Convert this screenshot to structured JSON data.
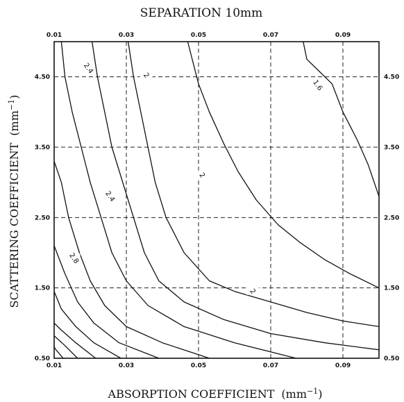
{
  "chart_data": {
    "type": "line",
    "title": "SEPARATION  10mm",
    "xlabel": "ABSORPTION  COEFFICIENT",
    "xlabel_unit": "(mm",
    "xlabel_unit_exp": "−1",
    "xlabel_unit_close": ")",
    "ylabel": "SCATTERING  COEFFICIENT",
    "ylabel_unit": "(mm",
    "ylabel_unit_exp": "−1",
    "ylabel_unit_close": ")",
    "xlim": [
      0.01,
      0.1
    ],
    "ylim": [
      0.5,
      5.0
    ],
    "x_ticks": [
      "0.01",
      "0.03",
      "0.05",
      "0.07",
      "0.09"
    ],
    "x_tick_values": [
      0.01,
      0.03,
      0.05,
      0.07,
      0.09
    ],
    "y_ticks": [
      "0.50",
      "1.50",
      "2.50",
      "3.50",
      "4.50"
    ],
    "y_tick_values": [
      0.5,
      1.5,
      2.5,
      3.5,
      4.5
    ],
    "grid": true,
    "grid_style": "dashed",
    "series": [
      {
        "values": [
          [
            0.0125,
            0.5
          ],
          [
            0.0105,
            0.62
          ],
          [
            0.01,
            0.66
          ]
        ]
      },
      {
        "values": [
          [
            0.0165,
            0.5
          ],
          [
            0.013,
            0.68
          ],
          [
            0.01,
            0.82
          ]
        ]
      },
      {
        "values": [
          [
            0.0215,
            0.5
          ],
          [
            0.016,
            0.72
          ],
          [
            0.012,
            0.9
          ],
          [
            0.01,
            1.0
          ]
        ]
      },
      {
        "values": [
          [
            0.0285,
            0.5
          ],
          [
            0.021,
            0.72
          ],
          [
            0.016,
            0.95
          ],
          [
            0.012,
            1.2
          ],
          [
            0.01,
            1.45
          ]
        ]
      },
      {
        "values": [
          [
            0.039,
            0.5
          ],
          [
            0.028,
            0.72
          ],
          [
            0.021,
            1.0
          ],
          [
            0.0165,
            1.3
          ],
          [
            0.013,
            1.7
          ],
          [
            0.01,
            2.1
          ]
        ]
      },
      {
        "values": [
          [
            0.053,
            0.5
          ],
          [
            0.04,
            0.72
          ],
          [
            0.03,
            0.95
          ],
          [
            0.024,
            1.25
          ],
          [
            0.02,
            1.6
          ],
          [
            0.017,
            2.0
          ],
          [
            0.014,
            2.5
          ],
          [
            0.012,
            3.0
          ],
          [
            0.01,
            3.3
          ]
        ]
      },
      {
        "values": [
          [
            0.077,
            0.5
          ],
          [
            0.06,
            0.72
          ],
          [
            0.046,
            0.95
          ],
          [
            0.036,
            1.25
          ],
          [
            0.03,
            1.6
          ],
          [
            0.026,
            2.0
          ],
          [
            0.023,
            2.5
          ],
          [
            0.02,
            3.0
          ],
          [
            0.0175,
            3.5
          ],
          [
            0.015,
            4.0
          ],
          [
            0.013,
            4.5
          ],
          [
            0.012,
            5.0
          ]
        ]
      },
      {
        "values": [
          [
            0.1,
            0.62
          ],
          [
            0.085,
            0.72
          ],
          [
            0.07,
            0.85
          ],
          [
            0.057,
            1.05
          ],
          [
            0.046,
            1.3
          ],
          [
            0.039,
            1.6
          ],
          [
            0.035,
            2.0
          ],
          [
            0.032,
            2.5
          ],
          [
            0.029,
            3.0
          ],
          [
            0.026,
            3.5
          ],
          [
            0.024,
            4.0
          ],
          [
            0.022,
            4.5
          ],
          [
            0.0205,
            5.0
          ]
        ]
      },
      {
        "values": [
          [
            0.1,
            0.95
          ],
          [
            0.09,
            1.03
          ],
          [
            0.08,
            1.15
          ],
          [
            0.07,
            1.3
          ],
          [
            0.06,
            1.45
          ],
          [
            0.053,
            1.6
          ],
          [
            0.046,
            2.0
          ],
          [
            0.041,
            2.5
          ],
          [
            0.038,
            3.0
          ],
          [
            0.036,
            3.5
          ],
          [
            0.034,
            4.0
          ],
          [
            0.032,
            4.5
          ],
          [
            0.0305,
            5.0
          ]
        ]
      },
      {
        "values": [
          [
            0.1,
            1.5
          ],
          [
            0.092,
            1.7
          ],
          [
            0.085,
            1.9
          ],
          [
            0.078,
            2.15
          ],
          [
            0.072,
            2.4
          ],
          [
            0.066,
            2.75
          ],
          [
            0.061,
            3.15
          ],
          [
            0.057,
            3.55
          ],
          [
            0.053,
            4.0
          ],
          [
            0.05,
            4.4
          ],
          [
            0.047,
            5.0
          ]
        ]
      },
      {
        "values": [
          [
            0.1,
            2.8
          ],
          [
            0.097,
            3.25
          ],
          [
            0.094,
            3.6
          ],
          [
            0.09,
            4.0
          ],
          [
            0.087,
            4.4
          ],
          [
            0.083,
            4.6
          ],
          [
            0.08,
            4.75
          ],
          [
            0.079,
            5.0
          ]
        ]
      }
    ],
    "contour_labels": [
      {
        "text": "2.4",
        "x": 0.0195,
        "y": 4.62
      },
      {
        "text": "2",
        "x": 0.0355,
        "y": 4.52
      },
      {
        "text": "1.6",
        "x": 0.083,
        "y": 4.38
      },
      {
        "text": "2",
        "x": 0.051,
        "y": 3.1
      },
      {
        "text": "2.4",
        "x": 0.0255,
        "y": 2.8
      },
      {
        "text": "2.8",
        "x": 0.0155,
        "y": 1.92
      },
      {
        "text": "2",
        "x": 0.065,
        "y": 1.45
      }
    ]
  }
}
